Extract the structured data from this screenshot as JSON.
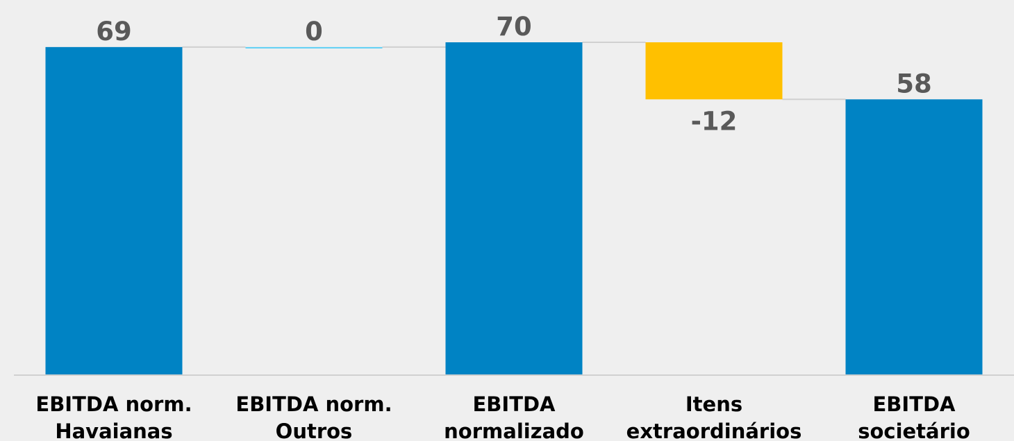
{
  "chart_data": {
    "type": "waterfall",
    "categories": [
      [
        "EBITDA norm.",
        "Havaianas"
      ],
      [
        "EBITDA norm.",
        "Outros"
      ],
      [
        "EBITDA",
        "normalizado"
      ],
      [
        "Itens",
        "extraordinários"
      ],
      [
        "EBITDA",
        "societário"
      ]
    ],
    "values": [
      69,
      0,
      70,
      -12,
      58
    ],
    "measures": [
      "absolute",
      "relative",
      "total",
      "relative",
      "total"
    ],
    "colors": [
      "#0083c4",
      "#5ccff5",
      "#0083c4",
      "#ffc000",
      "#0083c4"
    ]
  }
}
